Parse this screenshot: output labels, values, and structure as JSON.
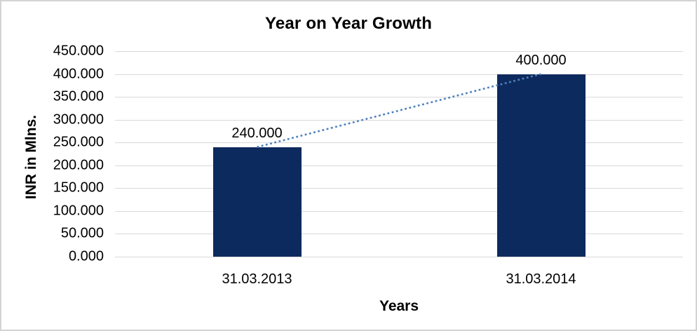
{
  "chart": {
    "title": "Year on Year Growth",
    "y_axis_title": "INR in Mlns.",
    "x_axis_title": "Years",
    "colors": {
      "bar": "#0d2a5e",
      "trendline": "#4f81bd",
      "gridline": "#d9d9d9",
      "border": "#d3d3d3",
      "text": "#000000",
      "background": "#ffffff"
    }
  },
  "chart_data": {
    "type": "bar",
    "title": "Year on Year Growth",
    "xlabel": "Years",
    "ylabel": "INR in Mlns.",
    "categories": [
      "31.03.2013",
      "31.03.2014"
    ],
    "values": [
      240,
      400
    ],
    "data_labels": [
      "240.000",
      "400.000"
    ],
    "ylim": [
      0,
      450
    ],
    "ytick_step": 50,
    "yticks": [
      "450.000",
      "400.000",
      "350.000",
      "300.000",
      "250.000",
      "200.000",
      "150.000",
      "100.000",
      "50.000",
      "0.000"
    ],
    "grid": "horizontal",
    "legend": "none",
    "trendline": {
      "style": "dotted",
      "connects": [
        240,
        400
      ]
    }
  }
}
